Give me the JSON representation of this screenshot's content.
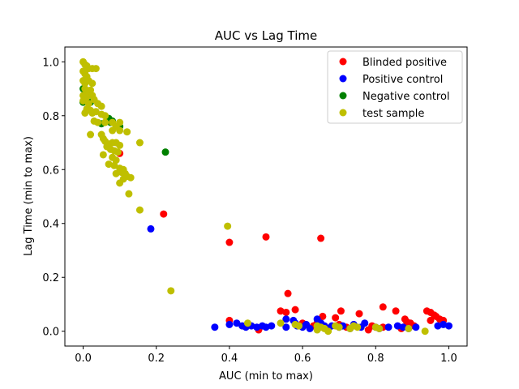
{
  "chart_data": {
    "type": "scatter",
    "title": "AUC vs Lag Time",
    "xlabel": "AUC (min to max)",
    "ylabel": "Lag Time (min to max)",
    "xlim": [
      -0.05,
      1.05
    ],
    "ylim": [
      -0.055,
      1.055
    ],
    "xticks": [
      0.0,
      0.2,
      0.4,
      0.6,
      0.8,
      1.0
    ],
    "yticks": [
      0.0,
      0.2,
      0.4,
      0.6,
      0.8,
      1.0
    ],
    "xtick_labels": [
      "0.0",
      "0.2",
      "0.4",
      "0.6",
      "0.8",
      "1.0"
    ],
    "ytick_labels": [
      "0.0",
      "0.2",
      "0.4",
      "0.6",
      "0.8",
      "1.0"
    ],
    "grid": false,
    "legend_position": "top-right",
    "series": [
      {
        "name": "Blinded positive",
        "color": "#ff0000",
        "points": [
          [
            0.1,
            0.66
          ],
          [
            0.22,
            0.435
          ],
          [
            0.4,
            0.33
          ],
          [
            0.5,
            0.35
          ],
          [
            0.65,
            0.345
          ],
          [
            0.56,
            0.14
          ],
          [
            0.54,
            0.075
          ],
          [
            0.555,
            0.07
          ],
          [
            0.58,
            0.08
          ],
          [
            0.655,
            0.055
          ],
          [
            0.69,
            0.05
          ],
          [
            0.705,
            0.075
          ],
          [
            0.755,
            0.065
          ],
          [
            0.82,
            0.09
          ],
          [
            0.855,
            0.075
          ],
          [
            0.88,
            0.045
          ],
          [
            0.885,
            0.035
          ],
          [
            0.895,
            0.03
          ],
          [
            0.94,
            0.075
          ],
          [
            0.95,
            0.07
          ],
          [
            0.96,
            0.06
          ],
          [
            0.965,
            0.055
          ],
          [
            0.975,
            0.045
          ],
          [
            0.985,
            0.04
          ],
          [
            0.95,
            0.04
          ],
          [
            0.4,
            0.04
          ],
          [
            0.48,
            0.005
          ],
          [
            0.6,
            0.03
          ],
          [
            0.63,
            0.02
          ],
          [
            0.78,
            0.005
          ],
          [
            0.79,
            0.02
          ],
          [
            0.82,
            0.015
          ],
          [
            0.87,
            0.01
          ],
          [
            0.905,
            0.02
          ],
          [
            0.64,
            0.03
          ],
          [
            0.7,
            0.025
          ],
          [
            0.72,
            0.015
          ]
        ]
      },
      {
        "name": "Positive control",
        "color": "#0000ff",
        "points": [
          [
            0.185,
            0.38
          ],
          [
            0.36,
            0.015
          ],
          [
            0.4,
            0.025
          ],
          [
            0.42,
            0.03
          ],
          [
            0.435,
            0.02
          ],
          [
            0.445,
            0.015
          ],
          [
            0.46,
            0.02
          ],
          [
            0.475,
            0.015
          ],
          [
            0.49,
            0.02
          ],
          [
            0.5,
            0.015
          ],
          [
            0.515,
            0.02
          ],
          [
            0.555,
            0.045
          ],
          [
            0.555,
            0.015
          ],
          [
            0.575,
            0.04
          ],
          [
            0.585,
            0.02
          ],
          [
            0.6,
            0.015
          ],
          [
            0.61,
            0.025
          ],
          [
            0.62,
            0.01
          ],
          [
            0.64,
            0.045
          ],
          [
            0.66,
            0.02
          ],
          [
            0.67,
            0.01
          ],
          [
            0.68,
            0.02
          ],
          [
            0.7,
            0.015
          ],
          [
            0.71,
            0.02
          ],
          [
            0.73,
            0.01
          ],
          [
            0.74,
            0.025
          ],
          [
            0.76,
            0.015
          ],
          [
            0.77,
            0.03
          ],
          [
            0.8,
            0.015
          ],
          [
            0.81,
            0.01
          ],
          [
            0.835,
            0.015
          ],
          [
            0.86,
            0.02
          ],
          [
            0.875,
            0.015
          ],
          [
            0.89,
            0.01
          ],
          [
            0.91,
            0.015
          ],
          [
            0.97,
            0.02
          ],
          [
            0.985,
            0.025
          ],
          [
            1.0,
            0.02
          ],
          [
            0.58,
            0.03
          ],
          [
            0.65,
            0.03
          ]
        ]
      },
      {
        "name": "Negative control",
        "color": "#008000",
        "points": [
          [
            0.225,
            0.665
          ],
          [
            0.08,
            0.78
          ],
          [
            0.1,
            0.76
          ],
          [
            0.07,
            0.79
          ],
          [
            0.02,
            0.85
          ],
          [
            0.0,
            0.85
          ],
          [
            0.01,
            0.82
          ],
          [
            0.05,
            0.77
          ],
          [
            0.075,
            0.775
          ],
          [
            0.0,
            0.9
          ],
          [
            0.01,
            0.88
          ]
        ]
      },
      {
        "name": "test sample",
        "color": "#bfbf00",
        "points": [
          [
            0.0,
            1.0
          ],
          [
            0.005,
            0.99
          ],
          [
            0.01,
            0.985
          ],
          [
            0.015,
            0.975
          ],
          [
            0.025,
            0.975
          ],
          [
            0.035,
            0.975
          ],
          [
            0.0,
            0.965
          ],
          [
            0.005,
            0.955
          ],
          [
            0.01,
            0.945
          ],
          [
            0.0,
            0.93
          ],
          [
            0.005,
            0.92
          ],
          [
            0.015,
            0.93
          ],
          [
            0.025,
            0.92
          ],
          [
            0.005,
            0.9
          ],
          [
            0.01,
            0.89
          ],
          [
            0.02,
            0.895
          ],
          [
            0.0,
            0.875
          ],
          [
            0.01,
            0.87
          ],
          [
            0.025,
            0.875
          ],
          [
            0.03,
            0.86
          ],
          [
            0.0,
            0.855
          ],
          [
            0.015,
            0.845
          ],
          [
            0.04,
            0.845
          ],
          [
            0.05,
            0.835
          ],
          [
            0.01,
            0.825
          ],
          [
            0.02,
            0.82
          ],
          [
            0.035,
            0.815
          ],
          [
            0.005,
            0.81
          ],
          [
            0.025,
            0.81
          ],
          [
            0.05,
            0.805
          ],
          [
            0.06,
            0.8
          ],
          [
            0.03,
            0.78
          ],
          [
            0.04,
            0.775
          ],
          [
            0.06,
            0.775
          ],
          [
            0.08,
            0.775
          ],
          [
            0.1,
            0.775
          ],
          [
            0.09,
            0.76
          ],
          [
            0.08,
            0.745
          ],
          [
            0.1,
            0.745
          ],
          [
            0.12,
            0.74
          ],
          [
            0.05,
            0.73
          ],
          [
            0.055,
            0.715
          ],
          [
            0.02,
            0.73
          ],
          [
            0.06,
            0.705
          ],
          [
            0.07,
            0.695
          ],
          [
            0.08,
            0.7
          ],
          [
            0.09,
            0.7
          ],
          [
            0.1,
            0.69
          ],
          [
            0.155,
            0.7
          ],
          [
            0.065,
            0.685
          ],
          [
            0.075,
            0.675
          ],
          [
            0.085,
            0.67
          ],
          [
            0.095,
            0.665
          ],
          [
            0.055,
            0.655
          ],
          [
            0.08,
            0.645
          ],
          [
            0.09,
            0.635
          ],
          [
            0.07,
            0.62
          ],
          [
            0.085,
            0.615
          ],
          [
            0.1,
            0.605
          ],
          [
            0.11,
            0.6
          ],
          [
            0.105,
            0.59
          ],
          [
            0.09,
            0.585
          ],
          [
            0.115,
            0.585
          ],
          [
            0.12,
            0.575
          ],
          [
            0.13,
            0.57
          ],
          [
            0.11,
            0.565
          ],
          [
            0.1,
            0.55
          ],
          [
            0.125,
            0.51
          ],
          [
            0.155,
            0.45
          ],
          [
            0.395,
            0.39
          ],
          [
            0.24,
            0.15
          ],
          [
            0.45,
            0.03
          ],
          [
            0.54,
            0.03
          ],
          [
            0.58,
            0.025
          ],
          [
            0.59,
            0.02
          ],
          [
            0.64,
            0.02
          ],
          [
            0.65,
            0.015
          ],
          [
            0.66,
            0.01
          ],
          [
            0.69,
            0.02
          ],
          [
            0.7,
            0.015
          ],
          [
            0.73,
            0.01
          ],
          [
            0.74,
            0.02
          ],
          [
            0.75,
            0.015
          ],
          [
            0.8,
            0.015
          ],
          [
            0.81,
            0.01
          ],
          [
            0.89,
            0.01
          ],
          [
            0.935,
            0.0
          ],
          [
            0.64,
            0.005
          ],
          [
            0.67,
            0.0
          ]
        ]
      }
    ]
  }
}
